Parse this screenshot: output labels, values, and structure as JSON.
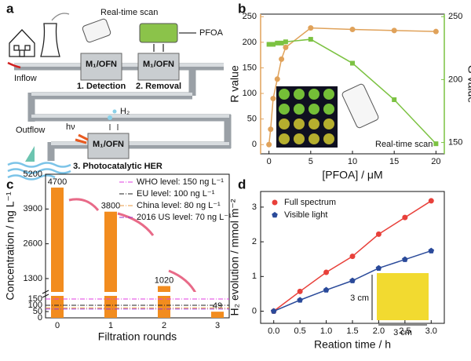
{
  "panel_labels": [
    "a",
    "b",
    "c",
    "d"
  ],
  "diagram": {
    "scan_label": "Real-time scan",
    "product": "PFOA",
    "inflow": "Inflow",
    "outflow": "Outflow",
    "light": "hν",
    "gas": "H₂",
    "units": [
      {
        "material": "M₁/OFN",
        "step": "1. Detection"
      },
      {
        "material": "M₁/OFN",
        "step": "2. Removal"
      },
      {
        "material": "M₁/OFN",
        "step": "3. Photocatalytic HER"
      }
    ]
  },
  "chart_data": [
    {
      "type": "line",
      "xlabel": "[PFOA] / μM",
      "ylabel": "R value",
      "y2label": "G value",
      "annotation": "Real-time scan",
      "xlim": [
        -1,
        21
      ],
      "xticks": [
        0,
        5,
        10,
        15,
        20
      ],
      "ylim": [
        -18,
        255
      ],
      "yticks": [
        0,
        50,
        100,
        150,
        200,
        250
      ],
      "y2lim": [
        141,
        252
      ],
      "y2ticks": [
        150,
        200,
        250
      ],
      "series": [
        {
          "name": "R value",
          "color": "#e0a25a",
          "marker": "circle",
          "x": [
            0,
            0.2,
            0.5,
            1,
            1.5,
            2,
            5,
            10,
            15,
            20
          ],
          "values": [
            0,
            30,
            90,
            128,
            167,
            190,
            228,
            225,
            223,
            221
          ]
        },
        {
          "name": "G value",
          "color": "#7cc242",
          "marker": "square",
          "axis": "y2",
          "x": [
            0,
            0.2,
            0.5,
            1,
            1.5,
            2,
            5,
            10,
            15,
            20
          ],
          "values": [
            228,
            228,
            228,
            229,
            229,
            230,
            232,
            213,
            184,
            149
          ]
        }
      ]
    },
    {
      "type": "bar",
      "xlabel": "Filtration rounds",
      "ylabel": "Concentration / ng L⁻¹",
      "color": "#f28c1e",
      "categories": [
        "0",
        "1",
        "2",
        "3"
      ],
      "values": [
        4700,
        3800,
        1020,
        49
      ],
      "ylim": [
        0,
        5200
      ],
      "ybreak": [
        175,
        800
      ],
      "yticks": [
        0,
        50,
        100,
        150,
        1300,
        2600,
        3900,
        5200
      ],
      "hlines": [
        {
          "name": "WHO level: 150 ng L⁻¹",
          "value": 150,
          "color": "#e03ee0"
        },
        {
          "name": "EU level: 100 ng L⁻¹",
          "value": 100,
          "color": "#222222"
        },
        {
          "name": "China level: 80 ng L⁻¹",
          "value": 80,
          "color": "#e89a40"
        },
        {
          "name": "2016 US level: 70 ng L⁻¹",
          "value": 70,
          "color": "#9a30c8"
        }
      ]
    },
    {
      "type": "line",
      "xlabel": "Reation time / h",
      "ylabel": "H₂ evolution / mmol m⁻²",
      "annotation": "3 cm",
      "legend": "upper left",
      "xlim": [
        -0.25,
        3.25
      ],
      "xticks": [
        {
          "value": 0,
          "label": "0.0"
        },
        {
          "value": 0.5,
          "label": "0.5"
        },
        {
          "value": 1,
          "label": "1.0"
        },
        {
          "value": 1.5,
          "label": "1.5"
        },
        {
          "value": 2,
          "label": "2.0"
        },
        {
          "value": 2.5,
          "label": "2.5"
        },
        {
          "value": 3,
          "label": "3.0"
        }
      ],
      "ylim": [
        -0.35,
        3.45
      ],
      "yticks": [
        0,
        1,
        2,
        3
      ],
      "series": [
        {
          "name": "Full spectrum",
          "color": "#e8403a",
          "marker": "circle",
          "x": [
            0,
            0.5,
            1,
            1.5,
            2,
            2.5,
            3
          ],
          "values": [
            0,
            0.57,
            1.12,
            1.58,
            2.22,
            2.7,
            3.18
          ]
        },
        {
          "name": "Visible light",
          "color": "#2a4a9a",
          "marker": "pentagon",
          "x": [
            0,
            0.5,
            1,
            1.5,
            2,
            2.5,
            3
          ],
          "values": [
            0,
            0.32,
            0.61,
            0.88,
            1.24,
            1.49,
            1.74
          ]
        }
      ]
    }
  ]
}
